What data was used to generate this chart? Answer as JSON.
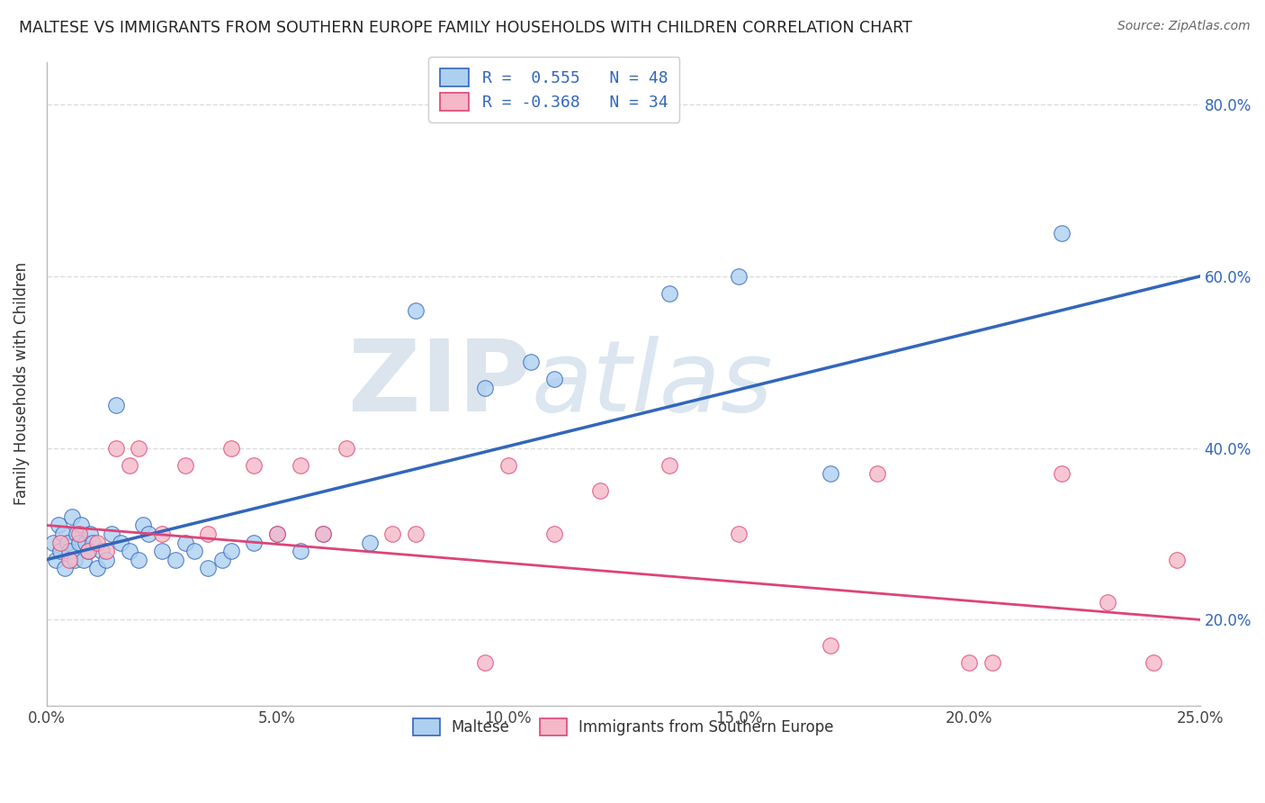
{
  "title": "MALTESE VS IMMIGRANTS FROM SOUTHERN EUROPE FAMILY HOUSEHOLDS WITH CHILDREN CORRELATION CHART",
  "source": "Source: ZipAtlas.com",
  "xlabel_ticks": [
    "0.0%",
    "5.0%",
    "10.0%",
    "15.0%",
    "20.0%",
    "25.0%"
  ],
  "xlabel_values": [
    0.0,
    5.0,
    10.0,
    15.0,
    20.0,
    25.0
  ],
  "ylabel_ticks": [
    "20.0%",
    "40.0%",
    "60.0%",
    "80.0%"
  ],
  "ylabel_values": [
    20.0,
    40.0,
    60.0,
    80.0
  ],
  "xlim": [
    0.0,
    25.0
  ],
  "ylim": [
    10.0,
    85.0
  ],
  "blue_label": "Maltese",
  "pink_label": "Immigrants from Southern Europe",
  "blue_R": "0.555",
  "blue_N": "48",
  "pink_R": "-0.368",
  "pink_N": "34",
  "blue_color": "#add0f0",
  "pink_color": "#f5b8c8",
  "blue_line_color": "#3366bb",
  "pink_line_color": "#dd4477",
  "blue_x": [
    0.15,
    0.2,
    0.25,
    0.3,
    0.35,
    0.4,
    0.45,
    0.5,
    0.55,
    0.6,
    0.65,
    0.7,
    0.75,
    0.8,
    0.85,
    0.9,
    0.95,
    1.0,
    1.1,
    1.2,
    1.3,
    1.4,
    1.5,
    1.6,
    1.8,
    2.0,
    2.1,
    2.2,
    2.5,
    2.8,
    3.0,
    3.2,
    3.5,
    3.8,
    4.0,
    4.5,
    5.0,
    5.5,
    6.0,
    7.0,
    8.0,
    9.5,
    10.5,
    11.0,
    13.5,
    15.0,
    17.0,
    22.0
  ],
  "blue_y": [
    29,
    27,
    31,
    28,
    30,
    26,
    29,
    28,
    32,
    27,
    30,
    29,
    31,
    27,
    29,
    28,
    30,
    29,
    26,
    28,
    27,
    30,
    45,
    29,
    28,
    27,
    31,
    30,
    28,
    27,
    29,
    28,
    26,
    27,
    28,
    29,
    30,
    28,
    30,
    29,
    56,
    47,
    50,
    48,
    58,
    60,
    37,
    65
  ],
  "pink_x": [
    0.3,
    0.5,
    0.7,
    0.9,
    1.1,
    1.3,
    1.5,
    1.8,
    2.0,
    2.5,
    3.0,
    3.5,
    4.0,
    4.5,
    5.0,
    5.5,
    6.0,
    6.5,
    7.5,
    8.0,
    9.5,
    10.0,
    11.0,
    12.0,
    13.5,
    15.0,
    17.0,
    18.0,
    20.0,
    20.5,
    22.0,
    23.0,
    24.0,
    24.5
  ],
  "pink_y": [
    29,
    27,
    30,
    28,
    29,
    28,
    40,
    38,
    40,
    30,
    38,
    30,
    40,
    38,
    30,
    38,
    30,
    40,
    30,
    30,
    15,
    38,
    30,
    35,
    38,
    30,
    17,
    37,
    15,
    15,
    37,
    22,
    15,
    27
  ],
  "blue_line_y0": 27.0,
  "blue_line_y25": 60.0,
  "pink_line_y0": 31.0,
  "pink_line_y25": 20.0,
  "watermark_zip": "ZIP",
  "watermark_atlas": "atlas",
  "background_color": "#ffffff",
  "grid_color": "#dddddd"
}
